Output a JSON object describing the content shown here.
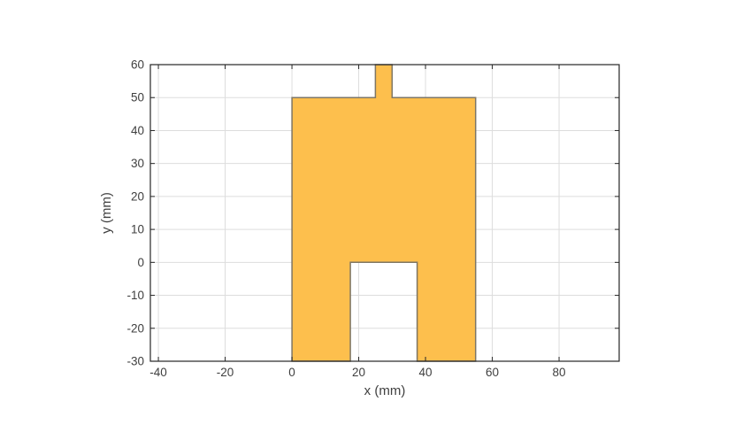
{
  "figure": {
    "background_color": "#FFFFFF",
    "kind": "matlab-style antenna geometry plot"
  },
  "chart_data": {
    "type": "polygon",
    "title": "",
    "xlabel": "x (mm)",
    "ylabel": "y (mm)",
    "xlim": [
      -42.4,
      98
    ],
    "ylim": [
      -30,
      60
    ],
    "xticks": [
      -40,
      -20,
      0,
      20,
      40,
      60,
      80
    ],
    "xtick_labels": [
      "-40",
      "-20",
      "0",
      "20",
      "40",
      "60",
      "80"
    ],
    "yticks": [
      -30,
      -20,
      -10,
      0,
      10,
      20,
      30,
      40,
      50,
      60
    ],
    "ytick_labels": [
      "-30",
      "-20",
      "-10",
      "0",
      "10",
      "20",
      "30",
      "40",
      "50",
      "60"
    ],
    "grid": true,
    "box": true,
    "tick_dir": "in",
    "legend": null,
    "series": [
      {
        "name": "antenna-metal-region",
        "type": "filled-polygon",
        "fill_color": "#FDBF4D",
        "edge_color": "#7E7664",
        "description": "rectangular patch 0..55 mm wide up to y=50, bottom notch 17.5..37.5 mm up to y=0, feed stub 25..30 mm from y=50 to y=60",
        "vertices_mm": [
          [
            0,
            -30
          ],
          [
            0,
            50
          ],
          [
            25,
            50
          ],
          [
            25,
            60
          ],
          [
            30,
            60
          ],
          [
            30,
            50
          ],
          [
            55,
            50
          ],
          [
            55,
            -30
          ],
          [
            37.5,
            -30
          ],
          [
            37.5,
            0
          ],
          [
            17.5,
            0
          ],
          [
            17.5,
            -30
          ]
        ]
      }
    ],
    "colors": {
      "axis": "#262626",
      "grid": "#DDDDDD",
      "tick_label": "#3F3F3F",
      "axis_label": "#3F3F3F"
    }
  }
}
